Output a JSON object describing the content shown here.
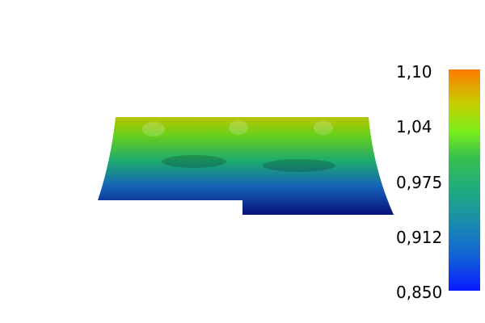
{
  "colorbar": {
    "tick_labels": [
      "1,10",
      "1,04",
      "0,975",
      "0,912",
      "0,850"
    ],
    "min": 0.85,
    "max": 1.1,
    "colormap": [
      {
        "stop": 0.0,
        "color": "#0a1aff"
      },
      {
        "stop": 0.15,
        "color": "#1060d8"
      },
      {
        "stop": 0.3,
        "color": "#1a8ab0"
      },
      {
        "stop": 0.45,
        "color": "#1faa80"
      },
      {
        "stop": 0.6,
        "color": "#35c050"
      },
      {
        "stop": 0.72,
        "color": "#7aee1a"
      },
      {
        "stop": 0.85,
        "color": "#c8cc00"
      },
      {
        "stop": 1.0,
        "color": "#ff7a00"
      }
    ]
  },
  "mesh": {
    "top_color": "#b8c400",
    "upper_color": "#6ad018",
    "mid_color": "#1caa70",
    "lower_color": "#1560b8",
    "bottom_color": "#06107a"
  }
}
